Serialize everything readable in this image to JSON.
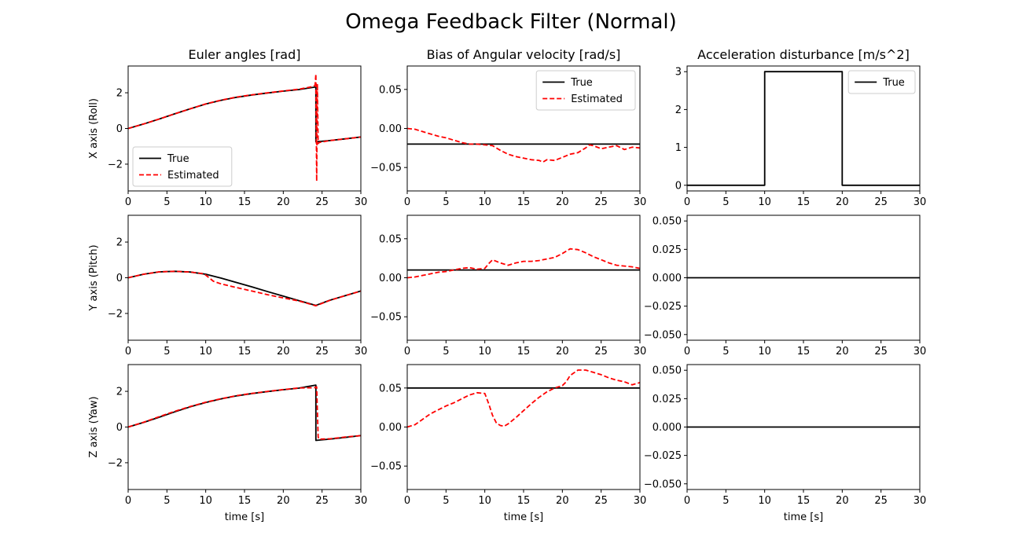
{
  "figure": {
    "title": "Omega Feedback Filter (Normal)"
  },
  "chart_data": [
    {
      "id": "euler-x",
      "type": "line",
      "title": "Euler angles [rad]",
      "xlabel": "",
      "ylabel": "X axis (Roll)",
      "xlim": [
        0,
        30
      ],
      "ylim": [
        -3.5,
        3.5
      ],
      "xticks": [
        0,
        5,
        10,
        15,
        20,
        25,
        30
      ],
      "xticklabels": [
        "0",
        "5",
        "10",
        "15",
        "20",
        "25",
        "30"
      ],
      "yticks": [
        -2,
        0,
        2
      ],
      "yticklabels": [
        "−2",
        "0",
        "2"
      ],
      "legend": "lower-left",
      "series": [
        {
          "name": "True",
          "color": "#000000",
          "dash": "solid",
          "x": [
            0,
            2,
            4,
            6,
            8,
            10,
            12,
            14,
            16,
            18,
            20,
            22,
            24.2,
            24.2,
            26,
            28,
            30
          ],
          "y": [
            0,
            0.25,
            0.53,
            0.82,
            1.1,
            1.37,
            1.58,
            1.75,
            1.88,
            1.99,
            2.09,
            2.18,
            2.33,
            -0.75,
            -0.68,
            -0.58,
            -0.48
          ]
        },
        {
          "name": "Estimated",
          "color": "#ff0000",
          "dash": "dashed",
          "x": [
            0,
            2,
            4,
            6,
            8,
            10,
            12,
            14,
            16,
            18,
            20,
            22,
            23.5,
            24.1,
            24.2,
            24.3,
            24.4,
            24.5,
            24.6,
            24.7,
            26,
            28,
            30
          ],
          "y": [
            0,
            0.25,
            0.53,
            0.82,
            1.1,
            1.38,
            1.59,
            1.76,
            1.89,
            2.0,
            2.1,
            2.2,
            2.32,
            2.42,
            3.05,
            -2.95,
            2.5,
            -0.85,
            -0.8,
            -0.78,
            -0.68,
            -0.58,
            -0.48
          ]
        }
      ]
    },
    {
      "id": "bias-x",
      "type": "line",
      "title": "Bias of Angular velocity [rad/s]",
      "xlabel": "",
      "ylabel": "",
      "xlim": [
        0,
        30
      ],
      "ylim": [
        -0.08,
        0.08
      ],
      "xticks": [
        0,
        5,
        10,
        15,
        20,
        25,
        30
      ],
      "xticklabels": [
        "0",
        "5",
        "10",
        "15",
        "20",
        "25",
        "30"
      ],
      "yticks": [
        -0.05,
        0,
        0.05
      ],
      "yticklabels": [
        "−0.05",
        "0.00",
        "0.05"
      ],
      "legend": "upper-right",
      "series": [
        {
          "name": "True",
          "color": "#000000",
          "dash": "solid",
          "x": [
            0,
            30
          ],
          "y": [
            -0.02,
            -0.02
          ]
        },
        {
          "name": "Estimated",
          "color": "#ff0000",
          "dash": "dashed",
          "x": [
            0,
            1,
            2,
            3,
            4,
            5,
            6,
            7,
            8,
            9,
            10,
            11,
            12,
            13,
            14,
            15,
            16,
            17,
            17.5,
            18,
            19,
            20,
            21,
            22,
            23,
            23.5,
            24,
            25,
            26,
            27,
            28,
            29,
            30
          ],
          "y": [
            0,
            -0.001,
            -0.004,
            -0.007,
            -0.01,
            -0.012,
            -0.015,
            -0.018,
            -0.02,
            -0.02,
            -0.021,
            -0.022,
            -0.028,
            -0.033,
            -0.036,
            -0.038,
            -0.04,
            -0.041,
            -0.043,
            -0.04,
            -0.041,
            -0.037,
            -0.033,
            -0.031,
            -0.025,
            -0.021,
            -0.022,
            -0.026,
            -0.024,
            -0.022,
            -0.027,
            -0.024,
            -0.025
          ]
        }
      ]
    },
    {
      "id": "acc-x",
      "type": "line",
      "title": "Acceleration disturbance [m/s^2]",
      "xlabel": "",
      "ylabel": "",
      "xlim": [
        0,
        30
      ],
      "ylim": [
        -0.15,
        3.15
      ],
      "xticks": [
        0,
        5,
        10,
        15,
        20,
        25,
        30
      ],
      "xticklabels": [
        "0",
        "5",
        "10",
        "15",
        "20",
        "25",
        "30"
      ],
      "yticks": [
        0,
        1,
        2,
        3
      ],
      "yticklabels": [
        "0",
        "1",
        "2",
        "3"
      ],
      "legend": "upper-right",
      "series": [
        {
          "name": "True",
          "color": "#000000",
          "dash": "solid",
          "x": [
            0,
            10,
            10,
            20,
            20,
            30
          ],
          "y": [
            0,
            0,
            3,
            3,
            0,
            0
          ]
        }
      ]
    },
    {
      "id": "euler-y",
      "type": "line",
      "title": "",
      "xlabel": "",
      "ylabel": "Y axis (Pitch)",
      "xlim": [
        0,
        30
      ],
      "ylim": [
        -3.5,
        3.5
      ],
      "xticks": [
        0,
        5,
        10,
        15,
        20,
        25,
        30
      ],
      "xticklabels": [
        "0",
        "5",
        "10",
        "15",
        "20",
        "25",
        "30"
      ],
      "yticks": [
        -2,
        0,
        2
      ],
      "yticklabels": [
        "−2",
        "0",
        "2"
      ],
      "legend": "none",
      "series": [
        {
          "name": "",
          "color": "#000000",
          "dash": "solid",
          "x": [
            0,
            2,
            4,
            6,
            8,
            10,
            12,
            14,
            16,
            18,
            20,
            22,
            24.2,
            26,
            28,
            30
          ],
          "y": [
            0,
            0.2,
            0.33,
            0.36,
            0.32,
            0.2,
            -0.02,
            -0.27,
            -0.52,
            -0.78,
            -1.03,
            -1.28,
            -1.55,
            -1.26,
            -1.0,
            -0.74
          ]
        },
        {
          "name": "",
          "color": "#ff0000",
          "dash": "dashed",
          "x": [
            0,
            2,
            4,
            6,
            8,
            9.8,
            10.3,
            11,
            12,
            14,
            16,
            18,
            20,
            22,
            24.2,
            26,
            28,
            30
          ],
          "y": [
            0,
            0.2,
            0.33,
            0.36,
            0.32,
            0.22,
            0.05,
            -0.2,
            -0.35,
            -0.55,
            -0.75,
            -0.95,
            -1.13,
            -1.3,
            -1.57,
            -1.27,
            -1.0,
            -0.75
          ]
        }
      ]
    },
    {
      "id": "bias-y",
      "type": "line",
      "title": "",
      "xlabel": "",
      "ylabel": "",
      "xlim": [
        0,
        30
      ],
      "ylim": [
        -0.08,
        0.08
      ],
      "xticks": [
        0,
        5,
        10,
        15,
        20,
        25,
        30
      ],
      "xticklabels": [
        "0",
        "5",
        "10",
        "15",
        "20",
        "25",
        "30"
      ],
      "yticks": [
        -0.05,
        0,
        0.05
      ],
      "yticklabels": [
        "−0.05",
        "0.00",
        "0.05"
      ],
      "legend": "none",
      "series": [
        {
          "name": "",
          "color": "#000000",
          "dash": "solid",
          "x": [
            0,
            30
          ],
          "y": [
            0.01,
            0.01
          ]
        },
        {
          "name": "",
          "color": "#ff0000",
          "dash": "dashed",
          "x": [
            0,
            1,
            2,
            3,
            4,
            5,
            6,
            7,
            8,
            9,
            10,
            10.5,
            11,
            12,
            13,
            14,
            15,
            16,
            17,
            18,
            19,
            20,
            21,
            22,
            23,
            24,
            25,
            26,
            27,
            28,
            29,
            30
          ],
          "y": [
            0,
            0.001,
            0.003,
            0.005,
            0.007,
            0.008,
            0.01,
            0.012,
            0.013,
            0.011,
            0.012,
            0.018,
            0.023,
            0.019,
            0.016,
            0.019,
            0.021,
            0.021,
            0.022,
            0.024,
            0.026,
            0.031,
            0.037,
            0.036,
            0.032,
            0.027,
            0.023,
            0.019,
            0.016,
            0.015,
            0.014,
            0.012
          ]
        }
      ]
    },
    {
      "id": "acc-y",
      "type": "line",
      "title": "",
      "xlabel": "",
      "ylabel": "",
      "xlim": [
        0,
        30
      ],
      "ylim": [
        -0.055,
        0.055
      ],
      "xticks": [
        0,
        5,
        10,
        15,
        20,
        25,
        30
      ],
      "xticklabels": [
        "0",
        "5",
        "10",
        "15",
        "20",
        "25",
        "30"
      ],
      "yticks": [
        -0.05,
        -0.025,
        0,
        0.025,
        0.05
      ],
      "yticklabels": [
        "−0.050",
        "−0.025",
        "0.000",
        "0.025",
        "0.050"
      ],
      "legend": "none",
      "series": [
        {
          "name": "",
          "color": "#000000",
          "dash": "solid",
          "x": [
            0,
            30
          ],
          "y": [
            0,
            0
          ]
        }
      ]
    },
    {
      "id": "euler-z",
      "type": "line",
      "title": "",
      "xlabel": "time [s]",
      "ylabel": "Z axis (Yaw)",
      "xlim": [
        0,
        30
      ],
      "ylim": [
        -3.5,
        3.5
      ],
      "xticks": [
        0,
        5,
        10,
        15,
        20,
        25,
        30
      ],
      "xticklabels": [
        "0",
        "5",
        "10",
        "15",
        "20",
        "25",
        "30"
      ],
      "yticks": [
        -2,
        0,
        2
      ],
      "yticklabels": [
        "−2",
        "0",
        "2"
      ],
      "legend": "none",
      "series": [
        {
          "name": "",
          "color": "#000000",
          "dash": "solid",
          "x": [
            0,
            2,
            4,
            6,
            8,
            10,
            12,
            14,
            16,
            18,
            20,
            22,
            24.2,
            24.2,
            26,
            28,
            30
          ],
          "y": [
            0,
            0.26,
            0.55,
            0.85,
            1.13,
            1.38,
            1.58,
            1.75,
            1.88,
            1.99,
            2.09,
            2.18,
            2.35,
            -0.75,
            -0.68,
            -0.58,
            -0.48
          ]
        },
        {
          "name": "",
          "color": "#ff0000",
          "dash": "dashed",
          "x": [
            0,
            2,
            4,
            6,
            8,
            10,
            12,
            14,
            16,
            18,
            20,
            22,
            24,
            24.3,
            24.5,
            24.6,
            26,
            28,
            30
          ],
          "y": [
            0,
            0.27,
            0.58,
            0.88,
            1.15,
            1.39,
            1.59,
            1.76,
            1.89,
            2.0,
            2.1,
            2.19,
            2.2,
            2.25,
            -0.55,
            -0.68,
            -0.66,
            -0.56,
            -0.48
          ]
        }
      ]
    },
    {
      "id": "bias-z",
      "type": "line",
      "title": "",
      "xlabel": "time [s]",
      "ylabel": "",
      "xlim": [
        0,
        30
      ],
      "ylim": [
        -0.08,
        0.08
      ],
      "xticks": [
        0,
        5,
        10,
        15,
        20,
        25,
        30
      ],
      "xticklabels": [
        "0",
        "5",
        "10",
        "15",
        "20",
        "25",
        "30"
      ],
      "yticks": [
        -0.05,
        0,
        0.05
      ],
      "yticklabels": [
        "−0.05",
        "0.00",
        "0.05"
      ],
      "legend": "none",
      "series": [
        {
          "name": "",
          "color": "#000000",
          "dash": "solid",
          "x": [
            0,
            30
          ],
          "y": [
            0.05,
            0.05
          ]
        },
        {
          "name": "",
          "color": "#ff0000",
          "dash": "dashed",
          "x": [
            0,
            1,
            2,
            3,
            4,
            5,
            6,
            7,
            8,
            9,
            10,
            10.5,
            11,
            11.5,
            12,
            12.5,
            13,
            14,
            15,
            16,
            17,
            18,
            19,
            20,
            20.5,
            21,
            22,
            23,
            24,
            25,
            26,
            27,
            28,
            29,
            30
          ],
          "y": [
            0,
            0.003,
            0.01,
            0.017,
            0.022,
            0.027,
            0.031,
            0.036,
            0.041,
            0.044,
            0.043,
            0.03,
            0.015,
            0.005,
            0.002,
            0.001,
            0.004,
            0.012,
            0.021,
            0.03,
            0.038,
            0.045,
            0.05,
            0.053,
            0.058,
            0.066,
            0.073,
            0.073,
            0.07,
            0.067,
            0.063,
            0.06,
            0.058,
            0.054,
            0.057
          ]
        }
      ]
    },
    {
      "id": "acc-z",
      "type": "line",
      "title": "",
      "xlabel": "time [s]",
      "ylabel": "",
      "xlim": [
        0,
        30
      ],
      "ylim": [
        -0.055,
        0.055
      ],
      "xticks": [
        0,
        5,
        10,
        15,
        20,
        25,
        30
      ],
      "xticklabels": [
        "0",
        "5",
        "10",
        "15",
        "20",
        "25",
        "30"
      ],
      "yticks": [
        -0.05,
        -0.025,
        0,
        0.025,
        0.05
      ],
      "yticklabels": [
        "−0.050",
        "−0.025",
        "0.000",
        "0.025",
        "0.050"
      ],
      "legend": "none",
      "series": [
        {
          "name": "",
          "color": "#000000",
          "dash": "solid",
          "x": [
            0,
            30
          ],
          "y": [
            0,
            0
          ]
        }
      ]
    }
  ]
}
